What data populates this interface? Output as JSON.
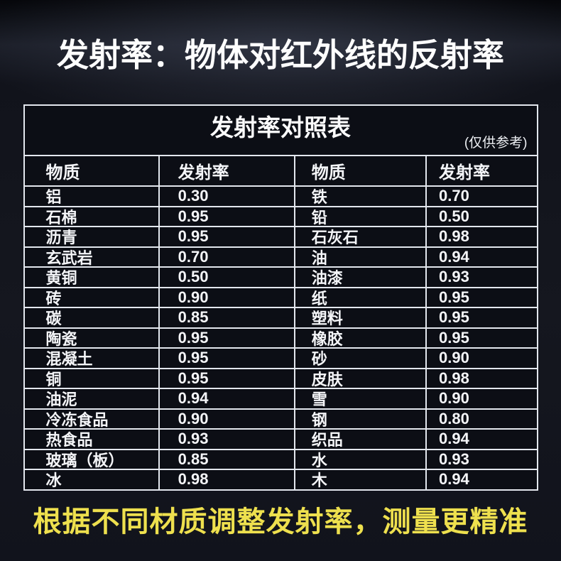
{
  "page": {
    "title": "发射率：物体对红外线的反射率",
    "footer": "根据不同材质调整发射率，测量更精准"
  },
  "chart_data": {
    "type": "table",
    "title": "发射率对照表",
    "note": "(仅供参考)",
    "columns": [
      "物质",
      "发射率",
      "物质",
      "发射率"
    ],
    "rows": [
      [
        "铝",
        "0.30",
        "铁",
        "0.70"
      ],
      [
        "石棉",
        "0.95",
        "铅",
        "0.50"
      ],
      [
        "沥青",
        "0.95",
        "石灰石",
        "0.98"
      ],
      [
        "玄武岩",
        "0.70",
        "油",
        "0.94"
      ],
      [
        "黄铜",
        "0.50",
        "油漆",
        "0.93"
      ],
      [
        "砖",
        "0.90",
        "纸",
        "0.95"
      ],
      [
        "碳",
        "0.85",
        "塑料",
        "0.95"
      ],
      [
        "陶瓷",
        "0.95",
        "橡胶",
        "0.95"
      ],
      [
        "混凝土",
        "0.95",
        "砂",
        "0.90"
      ],
      [
        "铜",
        "0.95",
        "皮肤",
        "0.98"
      ],
      [
        "油泥",
        "0.94",
        "雪",
        "0.90"
      ],
      [
        "冷冻食品",
        "0.90",
        "钢",
        "0.80"
      ],
      [
        " 热食品",
        "0.93",
        "织品",
        "0.94"
      ],
      [
        "玻璃（板）",
        "0.85",
        "水",
        "0.93"
      ],
      [
        "冰",
        "0.98",
        "木",
        "0.94"
      ]
    ]
  },
  "colors": {
    "accent_yellow": "#eee04e",
    "table_border": "#e3e7ee",
    "background": "#13151e",
    "table_background": "#0c0e15",
    "text_white": "#f5f6f8"
  }
}
